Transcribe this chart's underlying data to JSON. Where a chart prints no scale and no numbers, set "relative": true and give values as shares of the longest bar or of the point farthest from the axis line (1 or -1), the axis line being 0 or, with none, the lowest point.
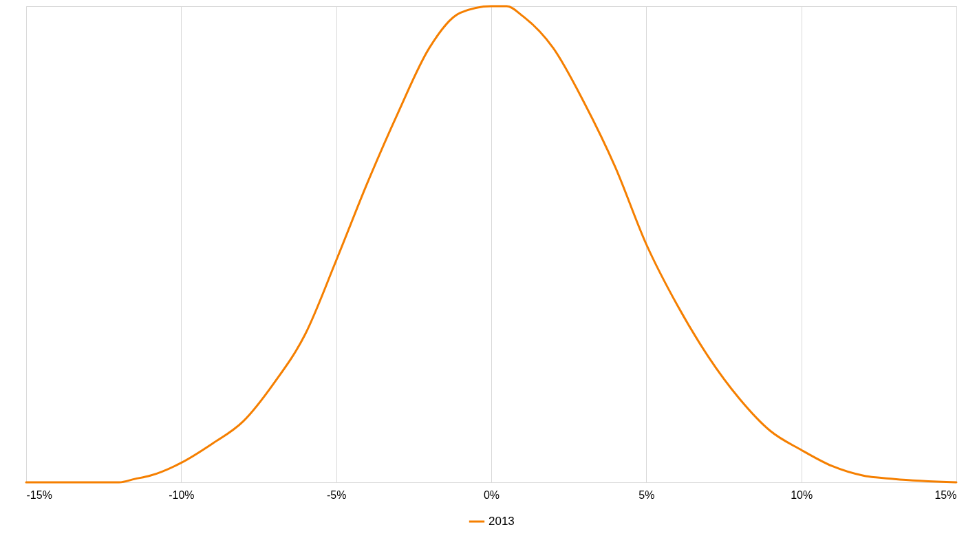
{
  "chart_data": {
    "type": "line",
    "relative": true,
    "grid": "x",
    "legend": "bottom",
    "xlim": [
      -15,
      15
    ],
    "xticks": [
      {
        "value": -15,
        "label": "-15%"
      },
      {
        "value": -10,
        "label": "-10%"
      },
      {
        "value": -5,
        "label": "-5%"
      },
      {
        "value": 0,
        "label": "0%"
      },
      {
        "value": 5,
        "label": "5%"
      },
      {
        "value": 10,
        "label": "10%"
      },
      {
        "value": 15,
        "label": "15%"
      }
    ],
    "x": [
      -15,
      -12,
      -11.5,
      -11,
      -10,
      -9,
      -8,
      -7,
      -6,
      -5,
      -4,
      -3,
      -2,
      -1,
      0,
      0.5,
      1,
      2,
      3,
      4,
      5,
      6,
      7,
      8,
      9,
      10,
      11,
      12,
      13,
      15
    ],
    "series": [
      {
        "name": "2013",
        "color": "#f57f00",
        "values": [
          0,
          0,
          0.007,
          0.014,
          0.041,
          0.081,
          0.128,
          0.209,
          0.311,
          0.466,
          0.628,
          0.777,
          0.912,
          0.986,
          1,
          1,
          0.98,
          0.912,
          0.797,
          0.662,
          0.5,
          0.372,
          0.264,
          0.176,
          0.108,
          0.068,
          0.034,
          0.014,
          0.007,
          0
        ]
      }
    ]
  }
}
